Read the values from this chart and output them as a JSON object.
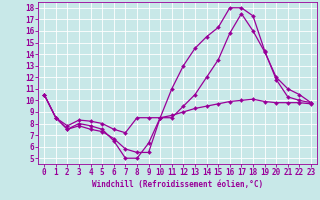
{
  "background_color": "#c8e8e8",
  "grid_color": "#ffffff",
  "line_color": "#990099",
  "marker": "D",
  "marker_size": 2,
  "line_width": 0.9,
  "xlabel": "Windchill (Refroidissement éolien,°C)",
  "xlabel_fontsize": 5.5,
  "tick_fontsize": 5.5,
  "ylabel_ticks": [
    5,
    6,
    7,
    8,
    9,
    10,
    11,
    12,
    13,
    14,
    15,
    16,
    17,
    18
  ],
  "xlabel_ticks": [
    0,
    1,
    2,
    3,
    4,
    5,
    6,
    7,
    8,
    9,
    10,
    11,
    12,
    13,
    14,
    15,
    16,
    17,
    18,
    19,
    20,
    21,
    22,
    23
  ],
  "xlim": [
    -0.5,
    23.5
  ],
  "ylim": [
    4.5,
    18.5
  ],
  "curve1_x": [
    0,
    1,
    2,
    3,
    4,
    5,
    6,
    7,
    8,
    9,
    10,
    11,
    12,
    13,
    14,
    15,
    16,
    17,
    18,
    19,
    20,
    21,
    22,
    23
  ],
  "curve1_y": [
    10.5,
    8.5,
    7.5,
    8.0,
    7.8,
    7.5,
    6.5,
    5.0,
    5.0,
    6.3,
    8.5,
    11.0,
    13.0,
    14.5,
    15.5,
    16.3,
    18.0,
    18.0,
    17.3,
    14.3,
    11.8,
    10.3,
    10.0,
    9.8
  ],
  "curve2_x": [
    0,
    1,
    2,
    3,
    4,
    5,
    6,
    7,
    8,
    9,
    10,
    11,
    12,
    13,
    14,
    15,
    16,
    17,
    18,
    19,
    20,
    21,
    22,
    23
  ],
  "curve2_y": [
    10.5,
    8.5,
    7.8,
    8.3,
    8.2,
    8.0,
    7.5,
    7.2,
    8.5,
    8.5,
    8.5,
    8.7,
    9.0,
    9.3,
    9.5,
    9.7,
    9.9,
    10.0,
    10.1,
    9.9,
    9.8,
    9.8,
    9.8,
    9.7
  ],
  "curve3_x": [
    0,
    1,
    2,
    3,
    4,
    5,
    6,
    7,
    8,
    9,
    10,
    11,
    12,
    13,
    14,
    15,
    16,
    17,
    18,
    19,
    20,
    21,
    22,
    23
  ],
  "curve3_y": [
    10.5,
    8.5,
    7.5,
    7.8,
    7.5,
    7.3,
    6.7,
    5.8,
    5.5,
    5.5,
    8.5,
    8.5,
    9.5,
    10.5,
    12.0,
    13.5,
    15.8,
    17.5,
    16.0,
    14.2,
    12.0,
    11.0,
    10.5,
    9.8
  ]
}
